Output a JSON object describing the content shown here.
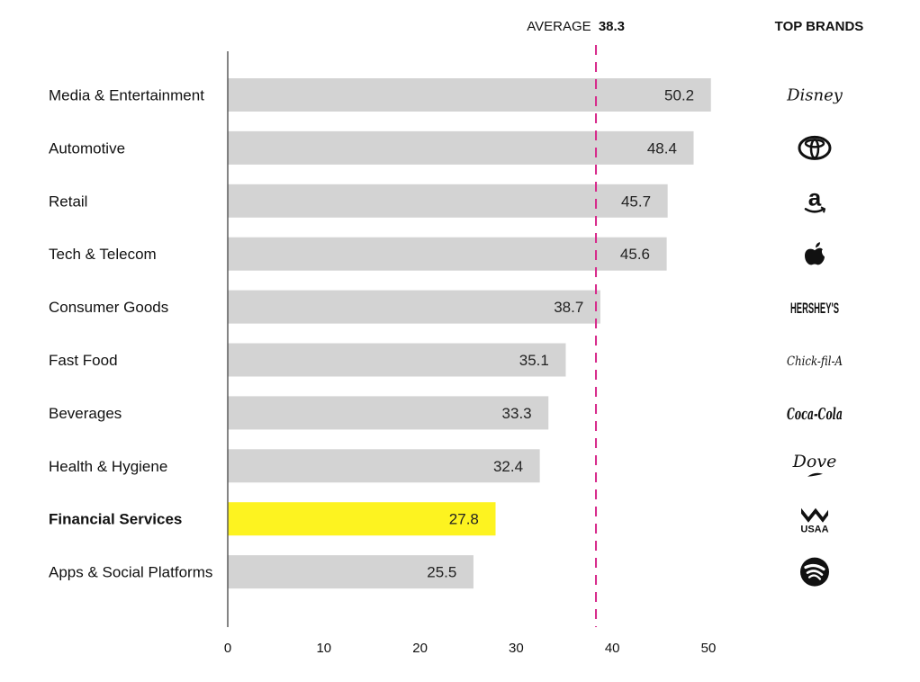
{
  "chart_data": {
    "type": "bar",
    "orientation": "horizontal",
    "categories": [
      "Media & Entertainment",
      "Automotive",
      "Retail",
      "Tech & Telecom",
      "Consumer Goods",
      "Fast Food",
      "Beverages",
      "Health & Hygiene",
      "Financial Services",
      "Apps & Social Platforms"
    ],
    "values": [
      50.2,
      48.4,
      45.7,
      45.6,
      38.7,
      35.1,
      33.3,
      32.4,
      27.8,
      25.5
    ],
    "value_labels": [
      "50.2",
      "48.4",
      "45.7",
      "45.6",
      "38.7",
      "35.1",
      "33.3",
      "32.4",
      "27.8",
      "25.5"
    ],
    "highlight_category": "Financial Services",
    "xlim": [
      0,
      50
    ],
    "xticks": [
      0,
      10,
      20,
      30,
      40,
      50
    ],
    "average": {
      "label": "AVERAGE",
      "value": 38.3,
      "value_label": "38.3"
    },
    "brands_header": "TOP BRANDS",
    "brands": [
      {
        "name": "Disney",
        "icon": "disney-logo-icon"
      },
      {
        "name": "Toyota",
        "icon": "toyota-logo-icon"
      },
      {
        "name": "a",
        "icon": "amazon-logo-icon"
      },
      {
        "name": "Apple",
        "icon": "apple-logo-icon"
      },
      {
        "name": "HERSHEY'S",
        "icon": "hersheys-logo-icon"
      },
      {
        "name": "Chick-fil-A",
        "icon": "chick-fil-a-logo-icon"
      },
      {
        "name": "Coca-Cola",
        "icon": "coca-cola-logo-icon"
      },
      {
        "name": "Dove",
        "icon": "dove-logo-icon"
      },
      {
        "name": "USAA",
        "icon": "usaa-logo-icon"
      },
      {
        "name": "Spotify",
        "icon": "spotify-logo-icon"
      }
    ],
    "grid": false,
    "colors": {
      "bar": "#d3d3d3",
      "highlight": "#fdf320",
      "average_line": "#d6288a",
      "axis": "#333333"
    }
  }
}
